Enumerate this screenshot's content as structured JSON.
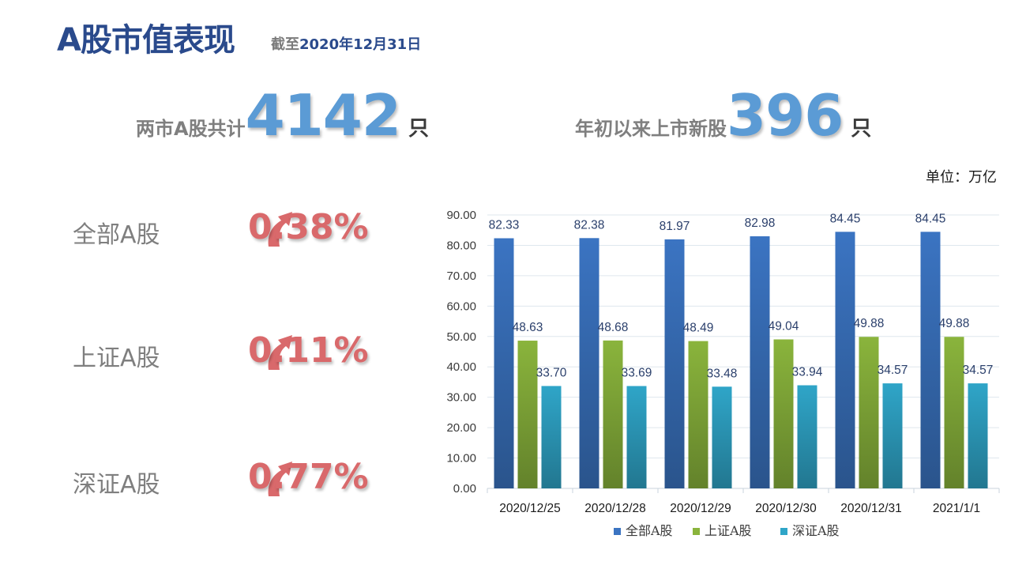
{
  "header": {
    "title": "A股市值表现",
    "asof_prefix": "截至",
    "asof_date": "2020年12月31日"
  },
  "stats": [
    {
      "label": "两市A股共计",
      "number": "4142",
      "unit": "只"
    },
    {
      "label": "年初以来上市新股",
      "number": "396",
      "unit": "只"
    }
  ],
  "unit_label": "单位：万亿",
  "markets": [
    {
      "name": "全部A股",
      "change": "0.38%",
      "direction": "up"
    },
    {
      "name": "上证A股",
      "change": "0.11%",
      "direction": "up"
    },
    {
      "name": "深证A股",
      "change": "0.77%",
      "direction": "up"
    }
  ],
  "colors": {
    "title": "#2a4a8c",
    "stat_number": "#5b9bd5",
    "change_up": "#d9696b",
    "series_all": "#3b74c2",
    "series_sh": "#8ab43c",
    "series_sz": "#2fa5c8"
  },
  "chart_data": {
    "type": "bar",
    "categories": [
      "2020/12/25",
      "2020/12/28",
      "2020/12/29",
      "2020/12/30",
      "2020/12/31",
      "2021/1/1"
    ],
    "series": [
      {
        "name": "全部A股",
        "values": [
          82.33,
          82.38,
          81.97,
          82.98,
          84.45,
          84.45
        ]
      },
      {
        "name": "上证A股",
        "values": [
          48.63,
          48.68,
          48.49,
          49.04,
          49.88,
          49.88
        ]
      },
      {
        "name": "深证A股",
        "values": [
          33.7,
          33.69,
          33.48,
          33.94,
          34.57,
          34.57
        ]
      }
    ],
    "ylim": [
      0,
      90
    ],
    "yticks": [
      "0.00",
      "10.00",
      "20.00",
      "30.00",
      "40.00",
      "50.00",
      "60.00",
      "70.00",
      "80.00",
      "90.00"
    ],
    "grid": true,
    "legend_position": "bottom"
  }
}
